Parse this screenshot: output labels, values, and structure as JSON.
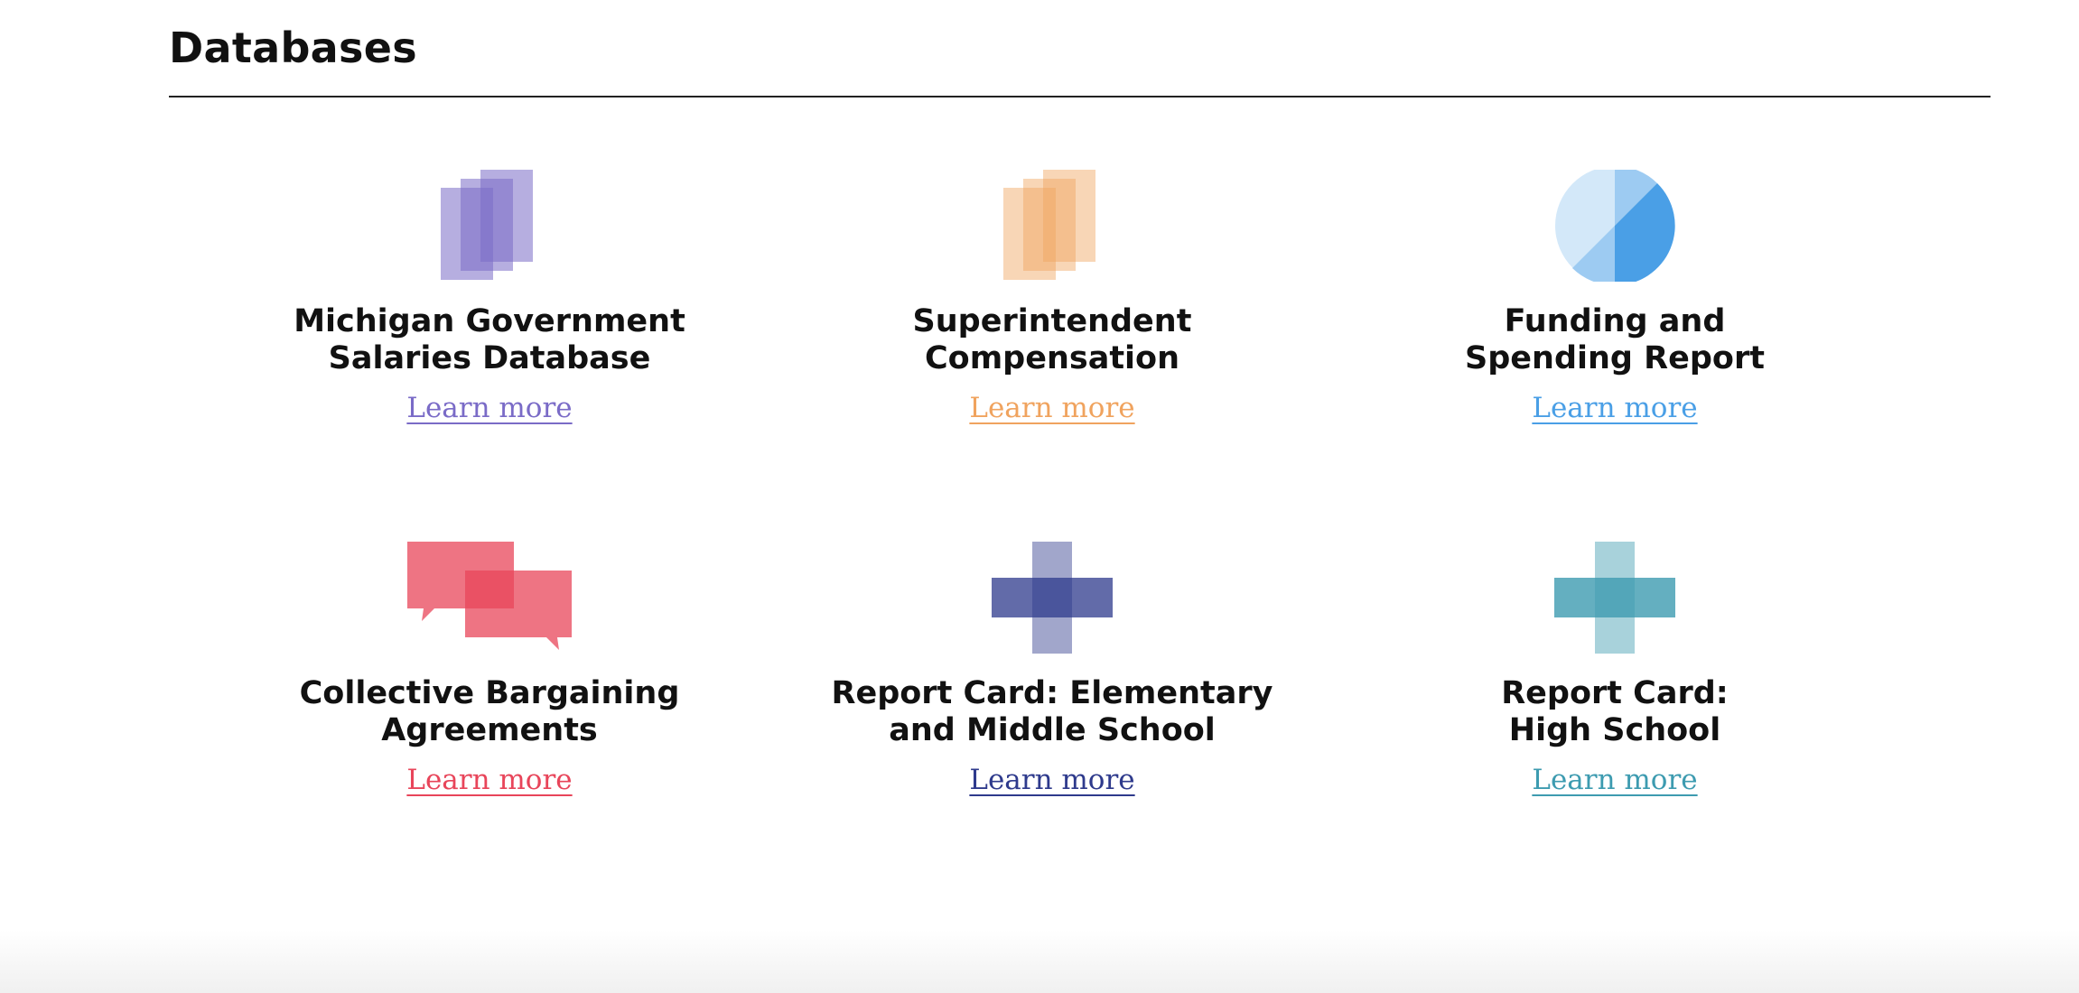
{
  "section": {
    "title": "Databases"
  },
  "cards": [
    {
      "title": "Michigan Government\nSalaries Database",
      "link_label": "Learn more",
      "icon": "stacked-documents-icon",
      "color": "#7a6bc7"
    },
    {
      "title": "Superintendent\nCompensation",
      "link_label": "Learn more",
      "icon": "stacked-documents-icon",
      "color": "#f0a35e"
    },
    {
      "title": "Funding and\nSpending Report",
      "link_label": "Learn more",
      "icon": "pie-chart-icon",
      "color": "#4a9fe6"
    },
    {
      "title": "Collective Bargaining\nAgreements",
      "link_label": "Learn more",
      "icon": "chat-bubbles-icon",
      "color": "#e8455a"
    },
    {
      "title": "Report Card: Elementary\nand Middle School",
      "link_label": "Learn more",
      "icon": "plus-cross-icon",
      "color": "#2e3a8c"
    },
    {
      "title": "Report Card:\nHigh School",
      "link_label": "Learn more",
      "icon": "plus-cross-icon",
      "color": "#3d9bb0"
    }
  ]
}
